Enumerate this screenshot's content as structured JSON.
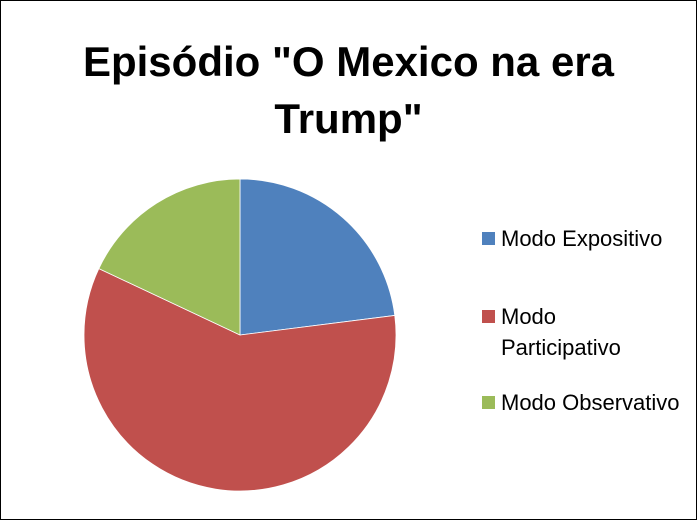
{
  "chart_data": {
    "type": "pie",
    "title": "Episódio \"O Mexico na era Trump\"",
    "categories": [
      "Modo Expositivo",
      "Modo Participativo",
      "Modo Observativo"
    ],
    "values": [
      23,
      59,
      18
    ],
    "colors": [
      "#4f81bd",
      "#c0504d",
      "#9bbb59"
    ],
    "legend": "right"
  }
}
